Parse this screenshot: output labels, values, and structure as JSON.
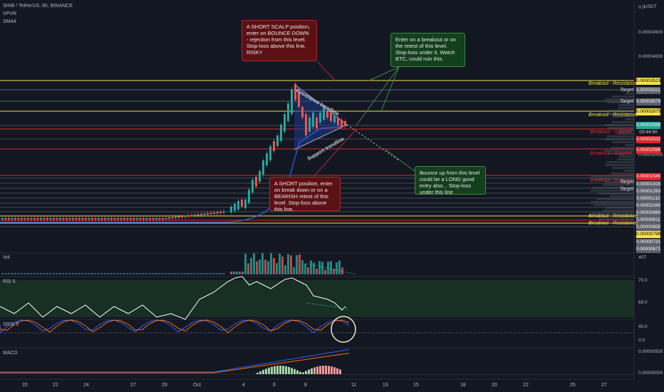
{
  "header": {
    "symbol": "SHIB / TetherUS, 6h, BINANCE",
    "indicator1": "VPVR",
    "indicator2": "SMA4",
    "currency": "USDT"
  },
  "price_axis": {
    "ticks": [
      "0.0",
      "0.00004500",
      "0.00004000",
      "0.00002000"
    ],
    "boxes": [
      {
        "text": "0.00003523",
        "bg": "#f7e24a",
        "fg": "#000"
      },
      {
        "text": "0.00003311",
        "bg": "#5d606b",
        "fg": "#fff"
      },
      {
        "text": "0.00003079",
        "bg": "#5d606b",
        "fg": "#fff"
      },
      {
        "text": "0.00002875",
        "bg": "#f7e24a",
        "fg": "#000"
      },
      {
        "text": "0.00002589",
        "bg": "#26a69a",
        "fg": "#fff"
      },
      {
        "text": "03:44:50",
        "bg": "#131722",
        "fg": "#d1d4dc"
      },
      {
        "text": "0.00002532",
        "bg": "#e0252a",
        "fg": "#fff"
      },
      {
        "text": "0.00002089",
        "bg": "#e0252a",
        "fg": "#fff"
      },
      {
        "text": "0.00001545",
        "bg": "#e0252a",
        "fg": "#fff"
      },
      {
        "text": "0.00001416",
        "bg": "#5d606b",
        "fg": "#fff"
      },
      {
        "text": "0.00001283",
        "bg": "#5d606b",
        "fg": "#fff"
      },
      {
        "text": "0.00001112",
        "bg": "#5d606b",
        "fg": "#fff"
      },
      {
        "text": "0.00001045",
        "bg": "#5d606b",
        "fg": "#fff"
      },
      {
        "text": "0.00000980",
        "bg": "#5d606b",
        "fg": "#fff"
      },
      {
        "text": "0.00000911",
        "bg": "#5d606b",
        "fg": "#fff"
      },
      {
        "text": "0.00000850",
        "bg": "#5d606b",
        "fg": "#fff"
      },
      {
        "text": "0.00000798",
        "bg": "#f7e24a",
        "fg": "#000"
      },
      {
        "text": "0.00000731",
        "bg": "#5d606b",
        "fg": "#fff"
      },
      {
        "text": "0.00000671",
        "bg": "#5d606b",
        "fg": "#fff"
      }
    ]
  },
  "line_labels": [
    {
      "text": "Breakout - Resistance",
      "color": "#f7e24a"
    },
    {
      "text": "Target",
      "color": "#d1d4dc"
    },
    {
      "text": "Target",
      "color": "#d1d4dc"
    },
    {
      "text": "Breakout - Resistance",
      "color": "#f7e24a"
    },
    {
      "text": "Breakout - Support",
      "color": "#e0252a"
    },
    {
      "text": "Breakout - Support",
      "color": "#e0252a"
    },
    {
      "text": "Breakout - Support",
      "color": "#e0252a"
    },
    {
      "text": "Target",
      "color": "#d1d4dc"
    },
    {
      "text": "Target",
      "color": "#d1d4dc"
    },
    {
      "text": "Breakout - Resistance",
      "color": "#f7e24a"
    },
    {
      "text": "Breakout - Resistance",
      "color": "#f7e24a"
    }
  ],
  "notes": {
    "short_scalp": "A SHORT SCALP position, enter on BOUNCE DOWN - rejection from this level. Stop-loss above this line. RISKY",
    "breakout": "Enter on a breakout or on the retest of this level. Stop-loss under it. Watch BTC, could ruin this.",
    "short": "A SHORT position, enter on break down or on a BEARISH retest of this level. Stop-loss above this line.",
    "bounce": "Bounce up from this level could be a LONG good entry also... Stop-loss under this line"
  },
  "trendlines": {
    "resistance": "Resistance trendline",
    "support": "Support trendline"
  },
  "panels": {
    "vol": {
      "title": "Vol",
      "tick": "40T"
    },
    "rsi": {
      "title": "RSI 5",
      "ticks": [
        "70.0",
        "60.0"
      ]
    },
    "srsi": {
      "title": "SRSI 5",
      "ticks": [
        "40.0",
        "0.0"
      ]
    },
    "macd": {
      "title": "MACD",
      "ticks": [
        "0.00000500",
        "0.00000000"
      ]
    }
  },
  "dates": [
    "20",
    "22",
    "24",
    "27",
    "29",
    "Oct",
    "4",
    "6",
    "8",
    "11",
    "13",
    "15",
    "18",
    "20",
    "22",
    "25",
    "27"
  ],
  "colors": {
    "bg": "#131722",
    "up": "#26a69a",
    "down": "#ef5350",
    "resistance": "#f7e24a",
    "support": "#e0252a"
  }
}
